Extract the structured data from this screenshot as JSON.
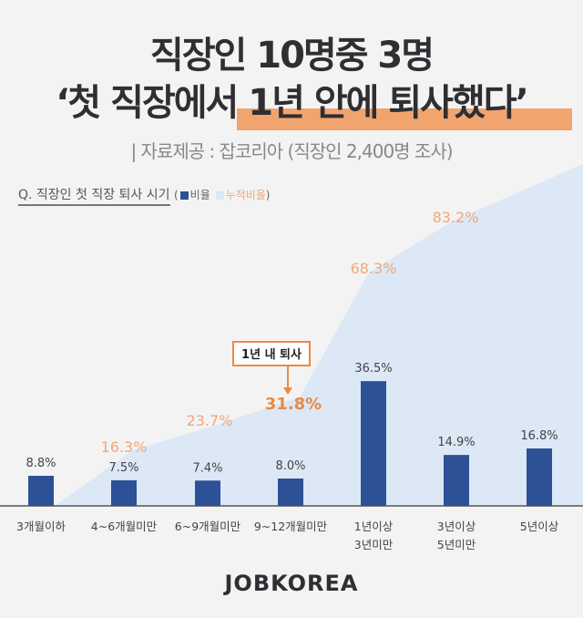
{
  "title_line1": "직장인 10명중 3명",
  "title_line2": "‘첫 직장에서 1년 안에 퇴사했다’",
  "source": "| 자료제공 : 잡코리아 (직장인 2,400명  조사)",
  "logo": "JOBKOREA",
  "colors": {
    "bar": "#2c5196",
    "area": "#dce8f5",
    "cumulative_label": "#f0a77a",
    "highlight": "#f2a46f",
    "callout": "#e98a45"
  },
  "chart_data": {
    "type": "bar",
    "title": "Q. 직장인 첫 직장 퇴사 시기",
    "legend": {
      "open": "(",
      "bar_label": "비율",
      "area_label": "누적비율",
      "close": ")",
      "placement": "top-left"
    },
    "categories": [
      "3개월이하",
      "4~6개월미만",
      "6~9개월미만",
      "9~12개월미만",
      "1년이상\n3년미만",
      "3년이상\n5년미만",
      "5년이상"
    ],
    "series": [
      {
        "name": "비율",
        "type": "bar",
        "values": [
          8.8,
          7.5,
          7.4,
          8.0,
          36.5,
          14.9,
          16.8
        ],
        "labels": [
          "8.8%",
          "7.5%",
          "7.4%",
          "8.0%",
          "36.5%",
          "14.9%",
          "16.8%"
        ]
      },
      {
        "name": "누적비율",
        "type": "area",
        "values": [
          8.8,
          16.3,
          23.7,
          31.8,
          68.3,
          83.2,
          100
        ],
        "labels": [
          "",
          "16.3%",
          "23.7%",
          "31.8%",
          "68.3%",
          "83.2%",
          ""
        ]
      }
    ],
    "annotation": {
      "text": "1년 내 퇴사",
      "target": "9~12개월미만",
      "value_label": "31.8%"
    },
    "ylim": [
      0,
      100
    ],
    "grid": false
  }
}
